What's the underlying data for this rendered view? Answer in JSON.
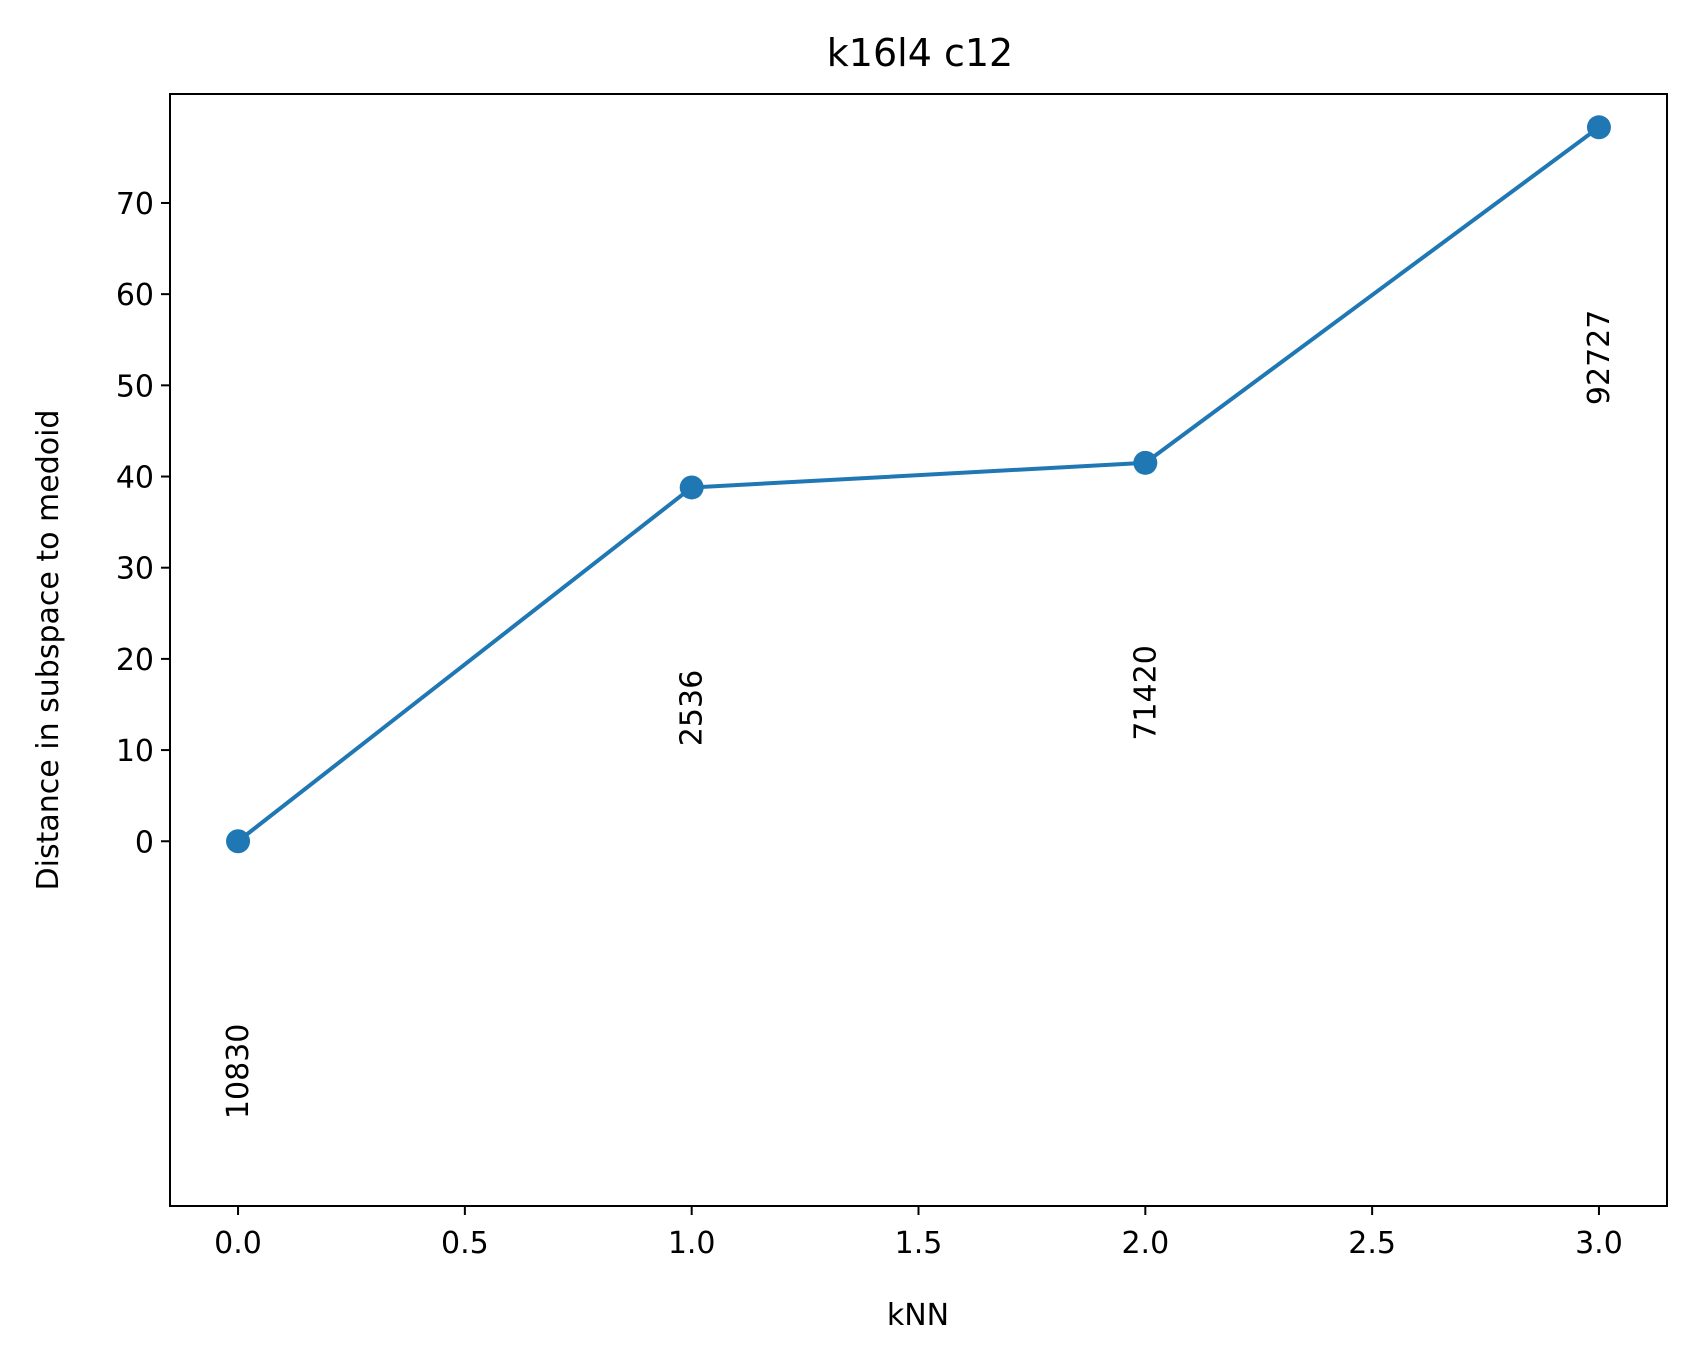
{
  "chart_data": {
    "type": "line",
    "title": "k16l4 c12",
    "xlabel": "kNN",
    "ylabel": "Distance in subspace to medoid",
    "x": [
      0,
      1,
      2,
      3
    ],
    "series": [
      {
        "values": [
          0,
          38.8,
          41.5,
          78.3
        ],
        "color": "#1f77b4",
        "marker": "circle"
      }
    ],
    "point_annotations": [
      "10830",
      "2536",
      "71420",
      "92727"
    ],
    "xticks": [
      0.0,
      0.5,
      1.0,
      1.5,
      2.0,
      2.5,
      3.0
    ],
    "xtick_labels": [
      "0.0",
      "0.5",
      "1.0",
      "1.5",
      "2.0",
      "2.5",
      "3.0"
    ],
    "yticks": [
      0,
      10,
      20,
      30,
      40,
      50,
      60,
      70
    ],
    "ytick_labels": [
      "0",
      "10",
      "20",
      "30",
      "40",
      "50",
      "60",
      "70"
    ],
    "xlim": [
      -0.15,
      3.15
    ],
    "ylim": [
      -40.0,
      81.95
    ],
    "grid": false,
    "legend": false
  }
}
